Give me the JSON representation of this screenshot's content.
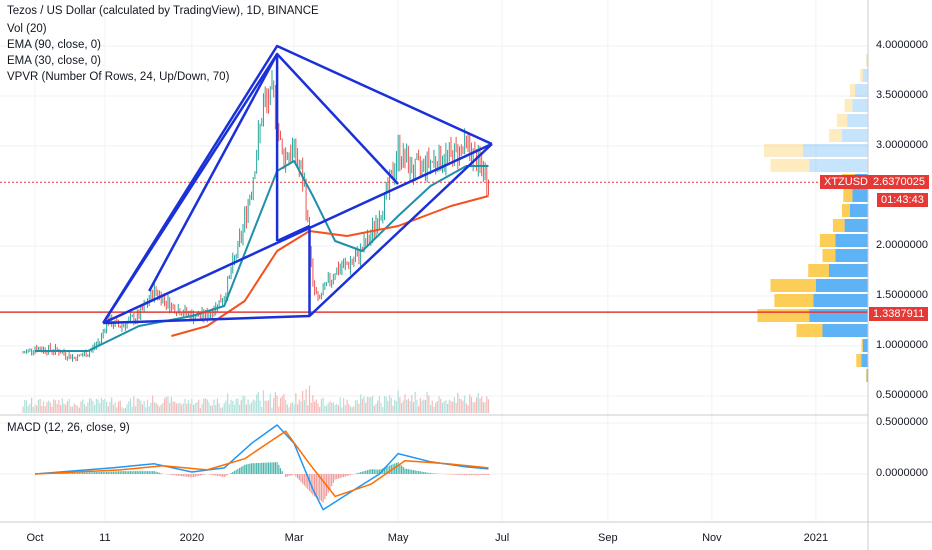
{
  "legend": {
    "title": "Tezos / US Dollar (calculated by TradingView), 1D, BINANCE",
    "vol": "Vol (20)",
    "ema90": "EMA (90, close, 0)",
    "ema30": "EMA (30, close, 0)",
    "vpvr": "VPVR (Number Of Rows, 24, Up/Down, 70)",
    "macd": "MACD (12, 26, close, 9)"
  },
  "badges": {
    "symbol": "XTZUSD",
    "last_price": "2.6370025",
    "countdown": "01:43:43",
    "level": "1.3387911"
  },
  "colors": {
    "up": "#26a69a",
    "down": "#ef5350",
    "drawing": "#1a30d8",
    "ema_fast": "#1e90a8",
    "ema_slow": "#f4511e",
    "hline": "#e53935",
    "macd": "#2196f3",
    "signal": "#ff6d00",
    "vpvr_up": "#42a5f5",
    "vpvr_down": "#fbc02d"
  },
  "chart_data": {
    "type": "candlestick",
    "price_axis": {
      "ticks": [
        "4.0000000",
        "3.5000000",
        "3.0000000",
        "2.0000000",
        "1.5000000",
        "1.0000000",
        "0.5000000"
      ],
      "values": [
        4.0,
        3.5,
        3.0,
        2.0,
        1.5,
        1.0,
        0.5
      ]
    },
    "macd_axis": {
      "ticks": [
        "0.5000000",
        "0.0000000"
      ],
      "values": [
        0.5,
        0.0
      ]
    },
    "x_ticks": [
      {
        "label": "Oct",
        "date": "2019-10-01"
      },
      {
        "label": "11",
        "date": "2019-11-11"
      },
      {
        "label": "2020",
        "date": "2020-01-01"
      },
      {
        "label": "Mar",
        "date": "2020-03-01"
      },
      {
        "label": "May",
        "date": "2020-05-01"
      },
      {
        "label": "Jul",
        "date": "2020-07-01"
      },
      {
        "label": "Sep",
        "date": "2020-09-01"
      },
      {
        "label": "Nov",
        "date": "2020-11-01"
      },
      {
        "label": "2021",
        "date": "2021-01-01"
      }
    ],
    "price_path": [
      {
        "date": "2019-09-24",
        "price": 0.93
      },
      {
        "date": "2019-10-01",
        "price": 0.98
      },
      {
        "date": "2019-10-15",
        "price": 0.95
      },
      {
        "date": "2019-10-24",
        "price": 0.88
      },
      {
        "date": "2019-11-01",
        "price": 0.93
      },
      {
        "date": "2019-11-08",
        "price": 1.05
      },
      {
        "date": "2019-11-12",
        "price": 1.25
      },
      {
        "date": "2019-11-20",
        "price": 1.2
      },
      {
        "date": "2019-12-01",
        "price": 1.3
      },
      {
        "date": "2019-12-10",
        "price": 1.55
      },
      {
        "date": "2019-12-20",
        "price": 1.4
      },
      {
        "date": "2020-01-01",
        "price": 1.3
      },
      {
        "date": "2020-01-10",
        "price": 1.3
      },
      {
        "date": "2020-01-20",
        "price": 1.5
      },
      {
        "date": "2020-01-30",
        "price": 2.1
      },
      {
        "date": "2020-02-05",
        "price": 2.6
      },
      {
        "date": "2020-02-12",
        "price": 3.4
      },
      {
        "date": "2020-02-18",
        "price": 3.5
      },
      {
        "date": "2020-02-23",
        "price": 2.9
      },
      {
        "date": "2020-03-01",
        "price": 2.95
      },
      {
        "date": "2020-03-07",
        "price": 2.6
      },
      {
        "date": "2020-03-12",
        "price": 1.6
      },
      {
        "date": "2020-03-15",
        "price": 1.45
      },
      {
        "date": "2020-03-25",
        "price": 1.75
      },
      {
        "date": "2020-04-05",
        "price": 1.85
      },
      {
        "date": "2020-04-15",
        "price": 2.1
      },
      {
        "date": "2020-04-25",
        "price": 2.55
      },
      {
        "date": "2020-05-01",
        "price": 2.95
      },
      {
        "date": "2020-05-10",
        "price": 2.75
      },
      {
        "date": "2020-05-20",
        "price": 2.85
      },
      {
        "date": "2020-06-01",
        "price": 2.9
      },
      {
        "date": "2020-06-10",
        "price": 3.0
      },
      {
        "date": "2020-06-18",
        "price": 2.8
      },
      {
        "date": "2020-06-23",
        "price": 2.64
      }
    ],
    "ema30": [
      {
        "date": "2019-10-01",
        "price": 0.95
      },
      {
        "date": "2019-11-01",
        "price": 0.95
      },
      {
        "date": "2019-12-01",
        "price": 1.2
      },
      {
        "date": "2020-01-01",
        "price": 1.3
      },
      {
        "date": "2020-01-20",
        "price": 1.4
      },
      {
        "date": "2020-02-05",
        "price": 2.1
      },
      {
        "date": "2020-02-20",
        "price": 2.75
      },
      {
        "date": "2020-03-01",
        "price": 2.85
      },
      {
        "date": "2020-03-12",
        "price": 2.5
      },
      {
        "date": "2020-03-25",
        "price": 2.05
      },
      {
        "date": "2020-04-10",
        "price": 1.95
      },
      {
        "date": "2020-05-01",
        "price": 2.3
      },
      {
        "date": "2020-05-20",
        "price": 2.6
      },
      {
        "date": "2020-06-10",
        "price": 2.8
      },
      {
        "date": "2020-06-23",
        "price": 2.8
      }
    ],
    "ema90": [
      {
        "date": "2019-12-20",
        "price": 1.1
      },
      {
        "date": "2020-01-10",
        "price": 1.2
      },
      {
        "date": "2020-02-01",
        "price": 1.45
      },
      {
        "date": "2020-02-20",
        "price": 1.95
      },
      {
        "date": "2020-03-10",
        "price": 2.15
      },
      {
        "date": "2020-04-01",
        "price": 2.1
      },
      {
        "date": "2020-05-01",
        "price": 2.2
      },
      {
        "date": "2020-06-01",
        "price": 2.4
      },
      {
        "date": "2020-06-23",
        "price": 2.5
      }
    ],
    "macd_line": [
      {
        "date": "2019-10-01",
        "value": 0.0
      },
      {
        "date": "2019-11-15",
        "value": 0.06
      },
      {
        "date": "2019-12-10",
        "value": 0.1
      },
      {
        "date": "2020-01-01",
        "value": 0.02
      },
      {
        "date": "2020-01-20",
        "value": 0.06
      },
      {
        "date": "2020-02-05",
        "value": 0.3
      },
      {
        "date": "2020-02-20",
        "value": 0.48
      },
      {
        "date": "2020-03-01",
        "value": 0.3
      },
      {
        "date": "2020-03-12",
        "value": -0.15
      },
      {
        "date": "2020-03-18",
        "value": -0.35
      },
      {
        "date": "2020-04-01",
        "value": -0.2
      },
      {
        "date": "2020-04-20",
        "value": 0.0
      },
      {
        "date": "2020-05-01",
        "value": 0.2
      },
      {
        "date": "2020-05-20",
        "value": 0.12
      },
      {
        "date": "2020-06-10",
        "value": 0.07
      },
      {
        "date": "2020-06-23",
        "value": 0.05
      }
    ],
    "signal_line": [
      {
        "date": "2019-10-01",
        "value": 0.0
      },
      {
        "date": "2019-11-20",
        "value": 0.04
      },
      {
        "date": "2019-12-15",
        "value": 0.08
      },
      {
        "date": "2020-01-10",
        "value": 0.04
      },
      {
        "date": "2020-02-01",
        "value": 0.15
      },
      {
        "date": "2020-02-25",
        "value": 0.42
      },
      {
        "date": "2020-03-10",
        "value": 0.1
      },
      {
        "date": "2020-03-25",
        "value": -0.22
      },
      {
        "date": "2020-04-15",
        "value": -0.1
      },
      {
        "date": "2020-05-05",
        "value": 0.13
      },
      {
        "date": "2020-05-30",
        "value": 0.1
      },
      {
        "date": "2020-06-23",
        "value": 0.06
      }
    ],
    "horizontal_line": {
      "price": 1.3387911
    },
    "drawings": [
      {
        "name": "pattern-upper-left",
        "points": [
          [
            "2019-11-10",
            1.23
          ],
          [
            "2020-02-20",
            4.0
          ],
          [
            "2020-06-25",
            3.02
          ]
        ]
      },
      {
        "name": "pattern-inner-top",
        "points": [
          [
            "2019-11-10",
            1.23
          ],
          [
            "2020-02-20",
            3.92
          ],
          [
            "2020-05-01",
            2.62
          ]
        ]
      },
      {
        "name": "pattern-lower",
        "points": [
          [
            "2019-11-10",
            1.23
          ],
          [
            "2020-03-10",
            1.3
          ],
          [
            "2020-06-25",
            3.02
          ]
        ]
      },
      {
        "name": "pattern-wedge-low",
        "points": [
          [
            "2019-11-10",
            1.23
          ],
          [
            "2020-06-25",
            3.02
          ]
        ]
      },
      {
        "name": "pattern-vertical-mid",
        "points": [
          [
            "2020-02-20",
            3.92
          ],
          [
            "2020-02-20",
            2.05
          ]
        ]
      },
      {
        "name": "pattern-left-arm",
        "points": [
          [
            "2019-12-07",
            1.55
          ],
          [
            "2020-02-20",
            3.92
          ]
        ]
      },
      {
        "name": "pattern-mar-vertical",
        "points": [
          [
            "2020-03-10",
            2.2
          ],
          [
            "2020-03-10",
            1.3
          ]
        ]
      },
      {
        "name": "pattern-mar-diagonal",
        "points": [
          [
            "2020-02-20",
            2.05
          ],
          [
            "2020-03-10",
            2.2
          ]
        ]
      }
    ],
    "volume_profile": [
      {
        "price": 3.85,
        "up": 0.01,
        "down": 0.005
      },
      {
        "price": 3.7,
        "up": 0.04,
        "down": 0.02
      },
      {
        "price": 3.55,
        "up": 0.1,
        "down": 0.04
      },
      {
        "price": 3.4,
        "up": 0.12,
        "down": 0.06
      },
      {
        "price": 3.25,
        "up": 0.16,
        "down": 0.08
      },
      {
        "price": 3.1,
        "up": 0.2,
        "down": 0.1
      },
      {
        "price": 2.95,
        "up": 0.5,
        "down": 0.3
      },
      {
        "price": 2.8,
        "up": 0.45,
        "down": 0.3
      },
      {
        "price": 2.65,
        "up": 0.1,
        "down": 0.1
      },
      {
        "price": 2.5,
        "up": 0.12,
        "down": 0.07
      },
      {
        "price": 2.35,
        "up": 0.14,
        "down": 0.06
      },
      {
        "price": 2.2,
        "up": 0.18,
        "down": 0.09
      },
      {
        "price": 2.05,
        "up": 0.25,
        "down": 0.12
      },
      {
        "price": 1.9,
        "up": 0.25,
        "down": 0.1
      },
      {
        "price": 1.75,
        "up": 0.3,
        "down": 0.16
      },
      {
        "price": 1.6,
        "up": 0.4,
        "down": 0.35
      },
      {
        "price": 1.45,
        "up": 0.42,
        "down": 0.3
      },
      {
        "price": 1.3,
        "up": 0.45,
        "down": 0.4
      },
      {
        "price": 1.15,
        "up": 0.35,
        "down": 0.2
      },
      {
        "price": 1.0,
        "up": 0.04,
        "down": 0.01
      },
      {
        "price": 0.85,
        "up": 0.05,
        "down": 0.04
      },
      {
        "price": 0.7,
        "up": 0.01,
        "down": 0.005
      }
    ]
  }
}
